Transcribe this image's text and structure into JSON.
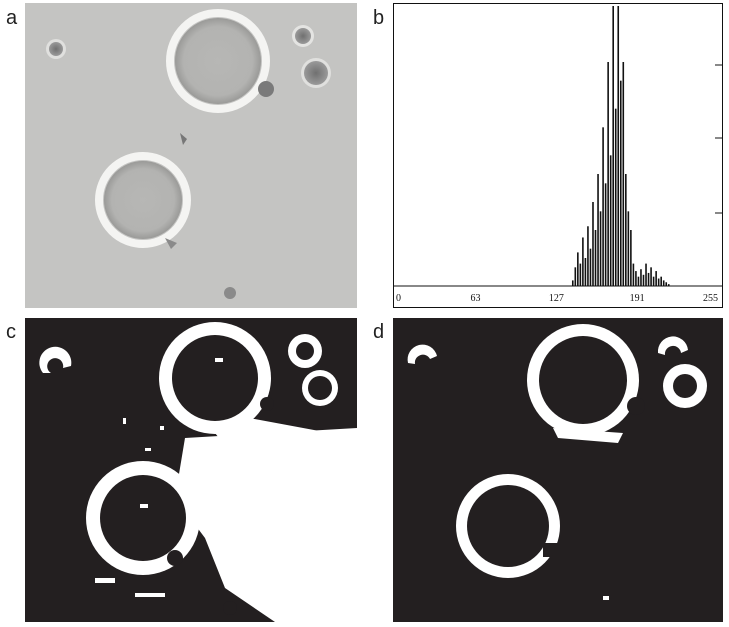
{
  "panels": {
    "a": {
      "label": "a"
    },
    "b": {
      "label": "b"
    },
    "c": {
      "label": "c"
    },
    "d": {
      "label": "d"
    }
  },
  "colors": {
    "micrograph_bg": "#c4c4c2",
    "binary_black": "#231f20",
    "binary_white": "#ffffff",
    "histogram_bar": "#111111"
  },
  "chart_data": {
    "type": "bar",
    "title": "",
    "xlabel": "",
    "ylabel": "",
    "xlim": [
      0,
      255
    ],
    "x_ticks": [
      "0",
      "63",
      "127",
      "191",
      "255"
    ],
    "grid": false,
    "bins": [
      140,
      142,
      144,
      146,
      148,
      150,
      152,
      154,
      156,
      158,
      160,
      162,
      164,
      166,
      168,
      170,
      172,
      174,
      176,
      178,
      180,
      182,
      184,
      186,
      188,
      190,
      192,
      194,
      196,
      198,
      200,
      202,
      204,
      206,
      208,
      210,
      212,
      214,
      216
    ],
    "values": [
      3,
      10,
      18,
      12,
      26,
      15,
      32,
      20,
      45,
      30,
      60,
      40,
      85,
      55,
      120,
      70,
      160,
      95,
      180,
      110,
      120,
      60,
      40,
      30,
      12,
      8,
      5,
      9,
      6,
      12,
      7,
      10,
      5,
      8,
      4,
      5,
      3,
      2,
      1
    ]
  }
}
